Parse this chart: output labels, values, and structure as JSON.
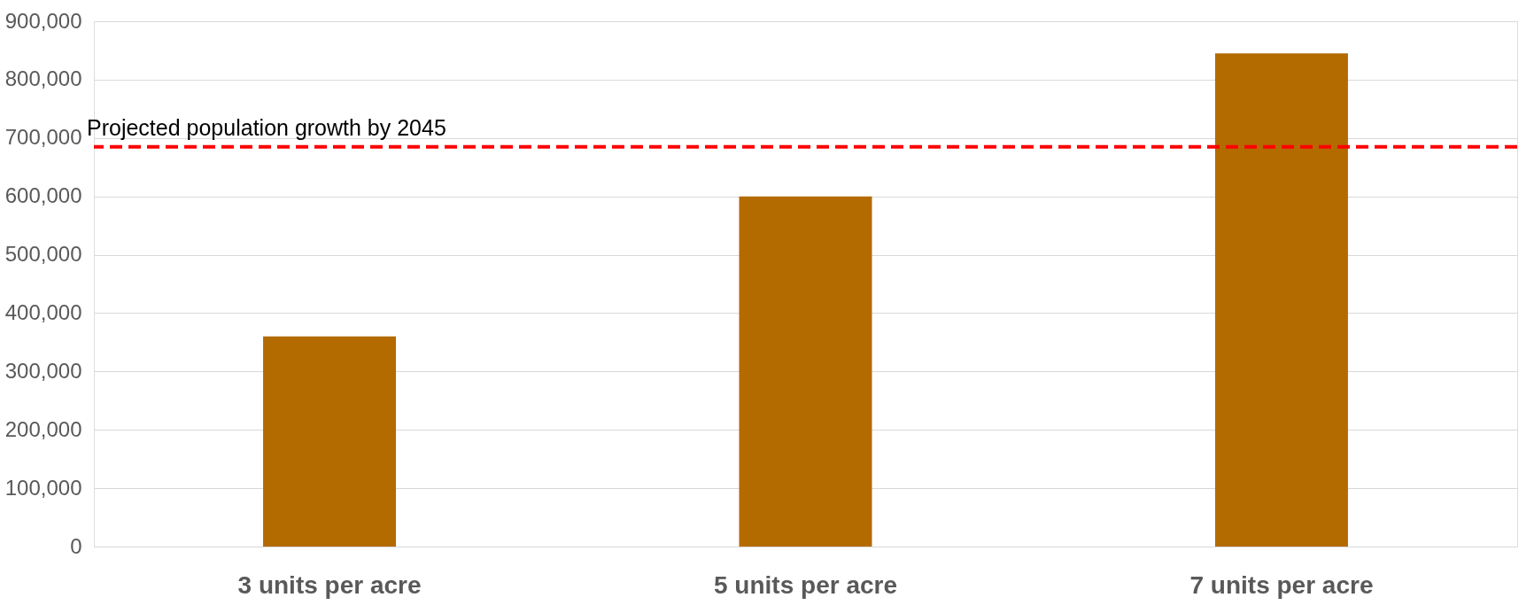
{
  "chart_data": {
    "type": "bar",
    "categories": [
      "3 units per acre",
      "5 units per acre",
      "7 units per acre"
    ],
    "values": [
      360000,
      600000,
      845000
    ],
    "color": "#b36b00",
    "ylim": [
      0,
      900000
    ],
    "yticks": [
      {
        "value": 0,
        "label": "0"
      },
      {
        "value": 100000,
        "label": "100,000"
      },
      {
        "value": 200000,
        "label": "200,000"
      },
      {
        "value": 300000,
        "label": "300,000"
      },
      {
        "value": 400000,
        "label": "400,000"
      },
      {
        "value": 500000,
        "label": "500,000"
      },
      {
        "value": 600000,
        "label": "600,000"
      },
      {
        "value": 700000,
        "label": "700,000"
      },
      {
        "value": 800000,
        "label": "800,000"
      },
      {
        "value": 900000,
        "label": "900,000"
      }
    ],
    "grid": "y",
    "ref_lines": [
      {
        "axis": "y",
        "value": 685000,
        "label": "Projected population growth by 2045",
        "color": "#ff0000",
        "line_style": "dashed"
      }
    ]
  }
}
